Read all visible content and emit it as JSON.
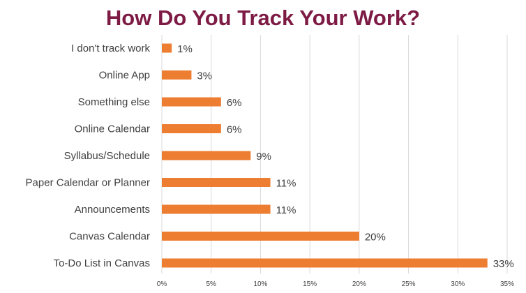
{
  "chart_data": {
    "type": "bar",
    "orientation": "horizontal",
    "title": "How Do You Track Your Work?",
    "categories": [
      "I don't track work",
      "Online App",
      "Something else",
      "Online Calendar",
      "Syllabus/Schedule",
      "Paper Calendar or Planner",
      "Announcements",
      "Canvas Calendar",
      "To-Do List in Canvas"
    ],
    "values": [
      1,
      3,
      6,
      6,
      9,
      11,
      11,
      20,
      33
    ],
    "data_labels": [
      "1%",
      "3%",
      "6%",
      "6%",
      "9%",
      "11%",
      "11%",
      "20%",
      "33%"
    ],
    "xticks": [
      "0%",
      "5%",
      "10%",
      "15%",
      "20%",
      "25%",
      "30%",
      "35%"
    ],
    "xlim": [
      0,
      35
    ],
    "xlabel": "",
    "ylabel": "",
    "grid": "vertical",
    "legend": "none",
    "colors": {
      "bar": "#ed7d31",
      "title": "#7d1b45",
      "grid": "#d9d9d9",
      "text": "#404040"
    }
  }
}
